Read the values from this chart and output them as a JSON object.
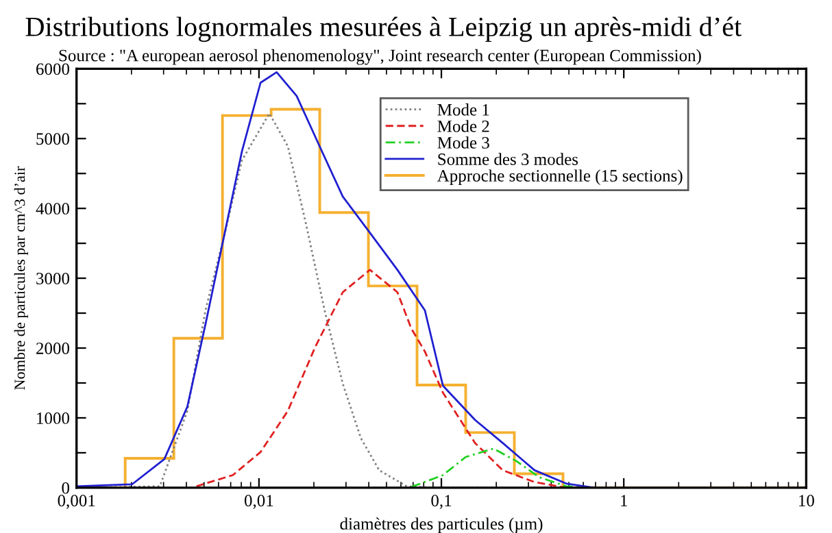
{
  "chart_data": {
    "type": "line",
    "title": "Distributions lognormales mesurées à Leipzig un après-midi d’ét",
    "subtitle": "Source : \"A european aerosol phenomenology\", Joint research center (European Commission)",
    "xlabel": "diamètres des particules (µm)",
    "ylabel": "Nombre de particules par cm^3 d’air",
    "log": "x",
    "xlim": [
      0.001,
      10
    ],
    "xticks": [
      {
        "value": 0.001,
        "label": "0,001"
      },
      {
        "value": 0.01,
        "label": "0,01"
      },
      {
        "value": 0.1,
        "label": "0,1"
      },
      1,
      10
    ],
    "ylim": [
      0,
      6000
    ],
    "yticks": [
      0,
      {
        "value": 500,
        "label": null
      },
      1000,
      {
        "value": 1500,
        "label": null
      },
      2000,
      {
        "value": 2500,
        "label": null
      },
      3000,
      {
        "value": 3500,
        "label": null
      },
      4000,
      {
        "value": 4500,
        "label": null
      },
      5000,
      {
        "value": 5500,
        "label": null
      },
      6000
    ],
    "grid": false,
    "legend": "top right",
    "series": [
      {
        "name": "Mode 1",
        "color": "#808080",
        "line_style": "dotted",
        "x": [
          0.001,
          0.00286,
          0.00405,
          0.00509,
          0.00641,
          0.00807,
          0.0114,
          0.0144,
          0.0181,
          0.0229,
          0.0288,
          0.0362,
          0.0456,
          0.0646,
          0.0912,
          0.2
        ],
        "values": [
          0,
          20,
          1100,
          2540,
          3580,
          4690,
          5360,
          4890,
          3780,
          2540,
          1490,
          710,
          250,
          20,
          0,
          0
        ]
      },
      {
        "name": "Mode 2",
        "color": "#e02020",
        "line_style": "dashed",
        "x": [
          0.00454,
          0.00719,
          0.0102,
          0.0144,
          0.0203,
          0.0288,
          0.0406,
          0.0574,
          0.0684,
          0.0812,
          0.102,
          0.153,
          0.217,
          0.324,
          0.483
        ],
        "values": [
          20,
          180,
          510,
          1100,
          2010,
          2800,
          3120,
          2800,
          2280,
          1950,
          1360,
          640,
          250,
          80,
          0
        ]
      },
      {
        "name": "Mode 3",
        "color": "#20d020",
        "line_style": "dashdot",
        "x": [
          0.0684,
          0.102,
          0.136,
          0.193,
          0.258,
          0.344,
          0.485,
          0.687
        ],
        "values": [
          10,
          180,
          440,
          560,
          380,
          150,
          20,
          0
        ]
      },
      {
        "name": "Somme des 3 modes",
        "color": "#2020d0",
        "line_style": "solid",
        "x": [
          0.001,
          0.00202,
          0.00303,
          0.00405,
          0.00509,
          0.00641,
          0.00807,
          0.0102,
          0.0125,
          0.0161,
          0.0215,
          0.0288,
          0.0406,
          0.0574,
          0.0812,
          0.102,
          0.153,
          0.217,
          0.324,
          0.483,
          0.687
        ],
        "values": [
          20,
          50,
          410,
          1160,
          2340,
          3580,
          4820,
          5800,
          5950,
          5610,
          4890,
          4170,
          3650,
          3120,
          2540,
          1460,
          970,
          640,
          250,
          60,
          0
        ]
      },
      {
        "name": "Approche sectionnelle (15 sections)",
        "type": "histogram",
        "color": "#f5b030",
        "line_style": "solid",
        "bins": [
          0.001,
          0.001848,
          0.003415,
          0.00631,
          0.01166,
          0.02154,
          0.03981,
          0.07356,
          0.1359,
          0.2512,
          0.4642,
          0.8577,
          1.585,
          2.929,
          5.412,
          10
        ],
        "values": [
          0,
          420,
          2140,
          5330,
          5420,
          3940,
          2890,
          1470,
          790,
          200,
          0,
          0,
          0,
          0,
          0
        ]
      }
    ]
  }
}
